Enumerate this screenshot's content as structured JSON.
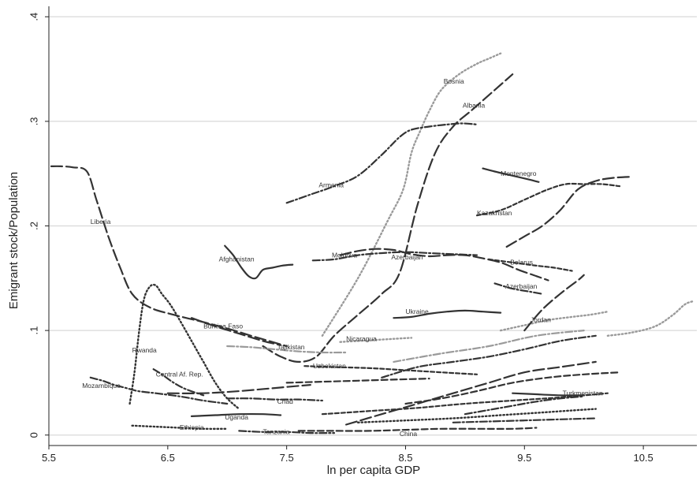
{
  "chart_data": {
    "type": "line",
    "title": "",
    "xlabel": "ln per capita GDP",
    "ylabel": "Emigrant stock/Population",
    "xlim": [
      5.5,
      10.95
    ],
    "ylim": [
      -0.01,
      0.41
    ],
    "xticks": [
      5.5,
      6.5,
      7.5,
      8.5,
      9.5,
      10.5
    ],
    "xtick_labels": [
      "5.5",
      "6.5",
      "7.5",
      "8.5",
      "9.5",
      "10.5"
    ],
    "yticks": [
      0,
      0.1,
      0.2,
      0.3,
      0.4
    ],
    "ytick_labels": [
      "0",
      ".1",
      ".2",
      ".3",
      ".4"
    ],
    "grid": "horizontal",
    "legend": "none",
    "series": [
      {
        "name": "Liberia",
        "label_pos": [
          5.85,
          0.202
        ],
        "style": "longdash",
        "color": "#333333",
        "x": [
          5.52,
          5.6,
          5.7,
          5.82,
          5.9,
          6.0,
          6.1,
          6.2,
          6.35,
          6.55,
          6.8,
          7.0,
          7.2,
          7.35,
          7.5
        ],
        "y": [
          0.257,
          0.257,
          0.256,
          0.252,
          0.225,
          0.19,
          0.16,
          0.135,
          0.122,
          0.115,
          0.108,
          0.102,
          0.095,
          0.09,
          0.085
        ]
      },
      {
        "name": "Bosnia",
        "label_pos": [
          8.82,
          0.336
        ],
        "style": "dot",
        "color": "#9a9a9a",
        "x": [
          7.8,
          8.1,
          8.35,
          8.48,
          8.55,
          8.62,
          8.7,
          8.8,
          8.95,
          9.1,
          9.2,
          9.3
        ],
        "y": [
          0.095,
          0.15,
          0.205,
          0.235,
          0.27,
          0.29,
          0.31,
          0.33,
          0.345,
          0.355,
          0.36,
          0.365
        ]
      },
      {
        "name": "Albania",
        "label_pos": [
          8.98,
          0.313
        ],
        "style": "longdash",
        "color": "#333333",
        "x": [
          7.3,
          7.45,
          7.6,
          7.75,
          7.9,
          8.1,
          8.3,
          8.45,
          8.6,
          8.75,
          8.9,
          9.05,
          9.2,
          9.3,
          9.4
        ],
        "y": [
          0.085,
          0.075,
          0.07,
          0.075,
          0.095,
          0.115,
          0.135,
          0.155,
          0.22,
          0.27,
          0.295,
          0.31,
          0.325,
          0.335,
          0.345
        ]
      },
      {
        "name": "Armenia",
        "label_pos": [
          7.77,
          0.237
        ],
        "style": "dashdot",
        "color": "#333333",
        "x": [
          7.5,
          7.7,
          7.9,
          8.1,
          8.3,
          8.45,
          8.55,
          8.7,
          8.85,
          8.98,
          9.1
        ],
        "y": [
          0.222,
          0.23,
          0.238,
          0.248,
          0.268,
          0.285,
          0.292,
          0.295,
          0.297,
          0.298,
          0.297
        ]
      },
      {
        "name": "Montenegro",
        "label_pos": [
          9.3,
          0.248
        ],
        "style": "solid",
        "color": "#333333",
        "x": [
          9.15,
          9.25,
          9.4,
          9.55,
          9.62
        ],
        "y": [
          0.255,
          0.252,
          0.248,
          0.244,
          0.242
        ]
      },
      {
        "name": "Kazakhstan",
        "label_pos": [
          9.1,
          0.21
        ],
        "style": "shortdash",
        "color": "#333333",
        "x": [
          9.1,
          9.3,
          9.5,
          9.7,
          9.85,
          10.0,
          10.15,
          10.3
        ],
        "y": [
          0.21,
          0.215,
          0.225,
          0.235,
          0.24,
          0.24,
          0.24,
          0.238
        ]
      },
      {
        "name": "Afghanistan",
        "label_pos": [
          6.93,
          0.166
        ],
        "style": "solid",
        "color": "#333333",
        "x": [
          6.98,
          7.05,
          7.12,
          7.18,
          7.24,
          7.3,
          7.38,
          7.46,
          7.55
        ],
        "y": [
          0.181,
          0.172,
          0.16,
          0.152,
          0.15,
          0.158,
          0.16,
          0.162,
          0.163
        ]
      },
      {
        "name": "Moldova",
        "label_pos": [
          7.88,
          0.17
        ],
        "style": "dashdot",
        "color": "#333333",
        "x": [
          7.72,
          7.9,
          8.1,
          8.3,
          8.5,
          8.7,
          8.9,
          9.1
        ],
        "y": [
          0.167,
          0.168,
          0.172,
          0.174,
          0.175,
          0.174,
          0.173,
          0.172
        ]
      },
      {
        "name": "Azerbaijan",
        "label_pos": [
          8.38,
          0.168
        ],
        "style": "longdash",
        "color": "#333333",
        "x": [
          7.95,
          8.1,
          8.25,
          8.4,
          8.55,
          8.7,
          8.85,
          9.0,
          9.15,
          9.3,
          9.45,
          9.6,
          9.7
        ],
        "y": [
          0.172,
          0.176,
          0.178,
          0.177,
          0.173,
          0.171,
          0.172,
          0.172,
          0.169,
          0.165,
          0.158,
          0.152,
          0.148
        ]
      },
      {
        "name": "Belarus",
        "label_pos": [
          9.38,
          0.163
        ],
        "style": "shortdash",
        "color": "#333333",
        "x": [
          9.2,
          9.4,
          9.6,
          9.75,
          9.9
        ],
        "y": [
          0.168,
          0.165,
          0.162,
          0.16,
          0.157
        ]
      },
      {
        "name": "Azerbaijan",
        "label_pos": [
          9.34,
          0.14
        ],
        "style": "dashdot",
        "color": "#333333",
        "x": [
          9.25,
          9.4,
          9.55,
          9.65
        ],
        "y": [
          0.145,
          0.14,
          0.137,
          0.135
        ]
      },
      {
        "name": "Ukraine",
        "label_pos": [
          8.5,
          0.116
        ],
        "style": "solid",
        "color": "#333333",
        "x": [
          8.4,
          8.55,
          8.7,
          8.85,
          9.0,
          9.15,
          9.3
        ],
        "y": [
          0.112,
          0.113,
          0.116,
          0.118,
          0.119,
          0.118,
          0.117
        ]
      },
      {
        "name": "Burkina Faso",
        "label_pos": [
          6.8,
          0.102
        ],
        "style": "longdash",
        "color": "#333333",
        "x": [
          6.7,
          6.9,
          7.1,
          7.3,
          7.45
        ],
        "y": [
          0.112,
          0.104,
          0.097,
          0.09,
          0.086
        ]
      },
      {
        "name": "Rwanda",
        "label_pos": [
          6.2,
          0.079
        ],
        "style": "dot",
        "color": "#333333",
        "x": [
          6.18,
          6.22,
          6.26,
          6.3,
          6.35,
          6.4,
          6.45,
          6.52,
          6.6,
          6.7,
          6.8,
          6.9,
          7.0,
          7.1
        ],
        "y": [
          0.03,
          0.06,
          0.1,
          0.13,
          0.142,
          0.143,
          0.135,
          0.125,
          0.11,
          0.09,
          0.07,
          0.05,
          0.035,
          0.025
        ]
      },
      {
        "name": "Tajikistan",
        "label_pos": [
          7.42,
          0.082
        ],
        "style": "dashdot",
        "color": "#9a9a9a",
        "x": [
          7.0,
          7.2,
          7.4,
          7.6,
          7.8,
          8.0
        ],
        "y": [
          0.085,
          0.084,
          0.082,
          0.08,
          0.079,
          0.079
        ]
      },
      {
        "name": "Nicaragua",
        "label_pos": [
          8.0,
          0.09
        ],
        "style": "dot",
        "color": "#9a9a9a",
        "x": [
          7.95,
          8.1,
          8.25,
          8.4,
          8.55
        ],
        "y": [
          0.089,
          0.09,
          0.091,
          0.092,
          0.093
        ]
      },
      {
        "name": "Uzbekistan",
        "label_pos": [
          7.72,
          0.064
        ],
        "style": "shortdash",
        "color": "#333333",
        "x": [
          7.65,
          7.9,
          8.2,
          8.5,
          8.8,
          9.1
        ],
        "y": [
          0.066,
          0.065,
          0.064,
          0.062,
          0.06,
          0.058
        ]
      },
      {
        "name": "Central Af. Rep.",
        "label_pos": [
          6.4,
          0.056
        ],
        "style": "dashdot",
        "color": "#333333",
        "x": [
          6.38,
          6.45,
          6.55,
          6.65,
          6.8
        ],
        "y": [
          0.063,
          0.058,
          0.05,
          0.044,
          0.038
        ]
      },
      {
        "name": "Mozambique",
        "label_pos": [
          5.78,
          0.045
        ],
        "style": "dashdot",
        "color": "#333333",
        "x": [
          5.85,
          5.95,
          6.05,
          6.15,
          6.25,
          6.4,
          6.6,
          6.8,
          7.0
        ],
        "y": [
          0.055,
          0.052,
          0.048,
          0.045,
          0.042,
          0.04,
          0.037,
          0.033,
          0.03
        ]
      },
      {
        "name": "Chad",
        "label_pos": [
          7.42,
          0.03
        ],
        "style": "dashdot",
        "color": "#333333",
        "x": [
          7.0,
          7.2,
          7.4,
          7.6,
          7.8
        ],
        "y": [
          0.035,
          0.035,
          0.034,
          0.034,
          0.033
        ]
      },
      {
        "name": "Uganda",
        "label_pos": [
          6.98,
          0.015
        ],
        "style": "solid",
        "color": "#333333",
        "x": [
          6.7,
          6.9,
          7.1,
          7.3,
          7.45
        ],
        "y": [
          0.018,
          0.019,
          0.02,
          0.02,
          0.019
        ]
      },
      {
        "name": "Ethiopia",
        "label_pos": [
          6.6,
          0.005
        ],
        "style": "dot",
        "color": "#333333",
        "x": [
          6.2,
          6.4,
          6.6,
          6.8,
          7.0
        ],
        "y": [
          0.009,
          0.008,
          0.007,
          0.006,
          0.006
        ]
      },
      {
        "name": "Tanzania",
        "label_pos": [
          7.3,
          0.001
        ],
        "style": "dashdot",
        "color": "#333333",
        "x": [
          7.1,
          7.3,
          7.5,
          7.7,
          7.9
        ],
        "y": [
          0.004,
          0.003,
          0.003,
          0.002,
          0.002
        ]
      },
      {
        "name": "China",
        "label_pos": [
          8.45,
          -0.001
        ],
        "style": "dash",
        "color": "#333333",
        "x": [
          7.6,
          7.9,
          8.2,
          8.5,
          8.8,
          9.1,
          9.4,
          9.6
        ],
        "y": [
          0.004,
          0.004,
          0.004,
          0.005,
          0.006,
          0.006,
          0.006,
          0.007
        ]
      },
      {
        "name": "Turkmenistan",
        "label_pos": [
          9.82,
          0.038
        ],
        "style": "solid",
        "color": "#333333",
        "x": [
          9.4,
          9.6,
          9.8,
          10.0
        ],
        "y": [
          0.04,
          0.039,
          0.038,
          0.038
        ]
      },
      {
        "name": "Jordan",
        "label_pos": [
          9.55,
          0.108
        ],
        "style": "dot",
        "color": "#9a9a9a",
        "x": [
          9.3,
          9.5,
          9.7,
          9.9,
          10.05,
          10.2
        ],
        "y": [
          0.1,
          0.105,
          0.11,
          0.113,
          0.115,
          0.118
        ]
      },
      {
        "name": "",
        "label_pos": null,
        "style": "longdash",
        "color": "#333333",
        "x": [
          9.35,
          9.5,
          9.65,
          9.8,
          9.95,
          10.1,
          10.25,
          10.4
        ],
        "y": [
          0.18,
          0.19,
          0.2,
          0.215,
          0.235,
          0.243,
          0.246,
          0.247
        ]
      },
      {
        "name": "",
        "label_pos": null,
        "style": "dot",
        "color": "#9a9a9a",
        "x": [
          10.2,
          10.4,
          10.6,
          10.75,
          10.85,
          10.92
        ],
        "y": [
          0.095,
          0.098,
          0.104,
          0.115,
          0.125,
          0.128
        ]
      },
      {
        "name": "",
        "label_pos": null,
        "style": "dashdot",
        "color": "#333333",
        "x": [
          8.3,
          8.6,
          8.9,
          9.2,
          9.5,
          9.8,
          10.1
        ],
        "y": [
          0.055,
          0.065,
          0.07,
          0.075,
          0.082,
          0.09,
          0.095
        ]
      },
      {
        "name": "",
        "label_pos": null,
        "style": "longdash",
        "color": "#333333",
        "x": [
          8.0,
          8.3,
          8.6,
          8.9,
          9.2,
          9.5,
          9.8,
          10.1
        ],
        "y": [
          0.01,
          0.02,
          0.03,
          0.04,
          0.05,
          0.06,
          0.065,
          0.07
        ]
      },
      {
        "name": "",
        "label_pos": null,
        "style": "shortdash",
        "color": "#333333",
        "x": [
          7.8,
          8.2,
          8.6,
          9.0,
          9.4,
          9.8,
          10.2
        ],
        "y": [
          0.02,
          0.023,
          0.026,
          0.03,
          0.033,
          0.036,
          0.04
        ]
      },
      {
        "name": "",
        "label_pos": null,
        "style": "dash",
        "color": "#333333",
        "x": [
          8.5,
          8.8,
          9.1,
          9.4,
          9.7,
          10.0,
          10.3
        ],
        "y": [
          0.03,
          0.035,
          0.042,
          0.05,
          0.055,
          0.058,
          0.06
        ]
      },
      {
        "name": "",
        "label_pos": null,
        "style": "dot",
        "color": "#333333",
        "x": [
          8.1,
          8.5,
          8.9,
          9.3,
          9.7,
          10.1
        ],
        "y": [
          0.012,
          0.014,
          0.016,
          0.019,
          0.022,
          0.025
        ]
      },
      {
        "name": "",
        "label_pos": null,
        "style": "dashdot",
        "color": "#9a9a9a",
        "x": [
          8.4,
          8.8,
          9.2,
          9.6,
          10.0
        ],
        "y": [
          0.07,
          0.078,
          0.085,
          0.095,
          0.1
        ]
      },
      {
        "name": "",
        "label_pos": null,
        "style": "longdash",
        "color": "#333333",
        "x": [
          9.5,
          9.65,
          9.8,
          9.95,
          10.0
        ],
        "y": [
          0.1,
          0.12,
          0.135,
          0.148,
          0.153
        ]
      },
      {
        "name": "",
        "label_pos": null,
        "style": "dashdot",
        "color": "#333333",
        "x": [
          9.0,
          9.2,
          9.4,
          9.6,
          9.8,
          10.0
        ],
        "y": [
          0.02,
          0.024,
          0.028,
          0.032,
          0.035,
          0.037
        ]
      },
      {
        "name": "",
        "label_pos": null,
        "style": "longdash",
        "color": "#333333",
        "x": [
          6.5,
          6.8,
          7.1,
          7.4,
          7.7
        ],
        "y": [
          0.04,
          0.04,
          0.042,
          0.045,
          0.048
        ]
      },
      {
        "name": "",
        "label_pos": null,
        "style": "dash",
        "color": "#333333",
        "x": [
          7.5,
          7.8,
          8.1,
          8.4,
          8.7
        ],
        "y": [
          0.05,
          0.051,
          0.052,
          0.053,
          0.054
        ]
      },
      {
        "name": "",
        "label_pos": null,
        "style": "dashdot",
        "color": "#333333",
        "x": [
          8.9,
          9.2,
          9.5,
          9.8,
          10.1
        ],
        "y": [
          0.012,
          0.013,
          0.014,
          0.015,
          0.016
        ]
      }
    ]
  }
}
